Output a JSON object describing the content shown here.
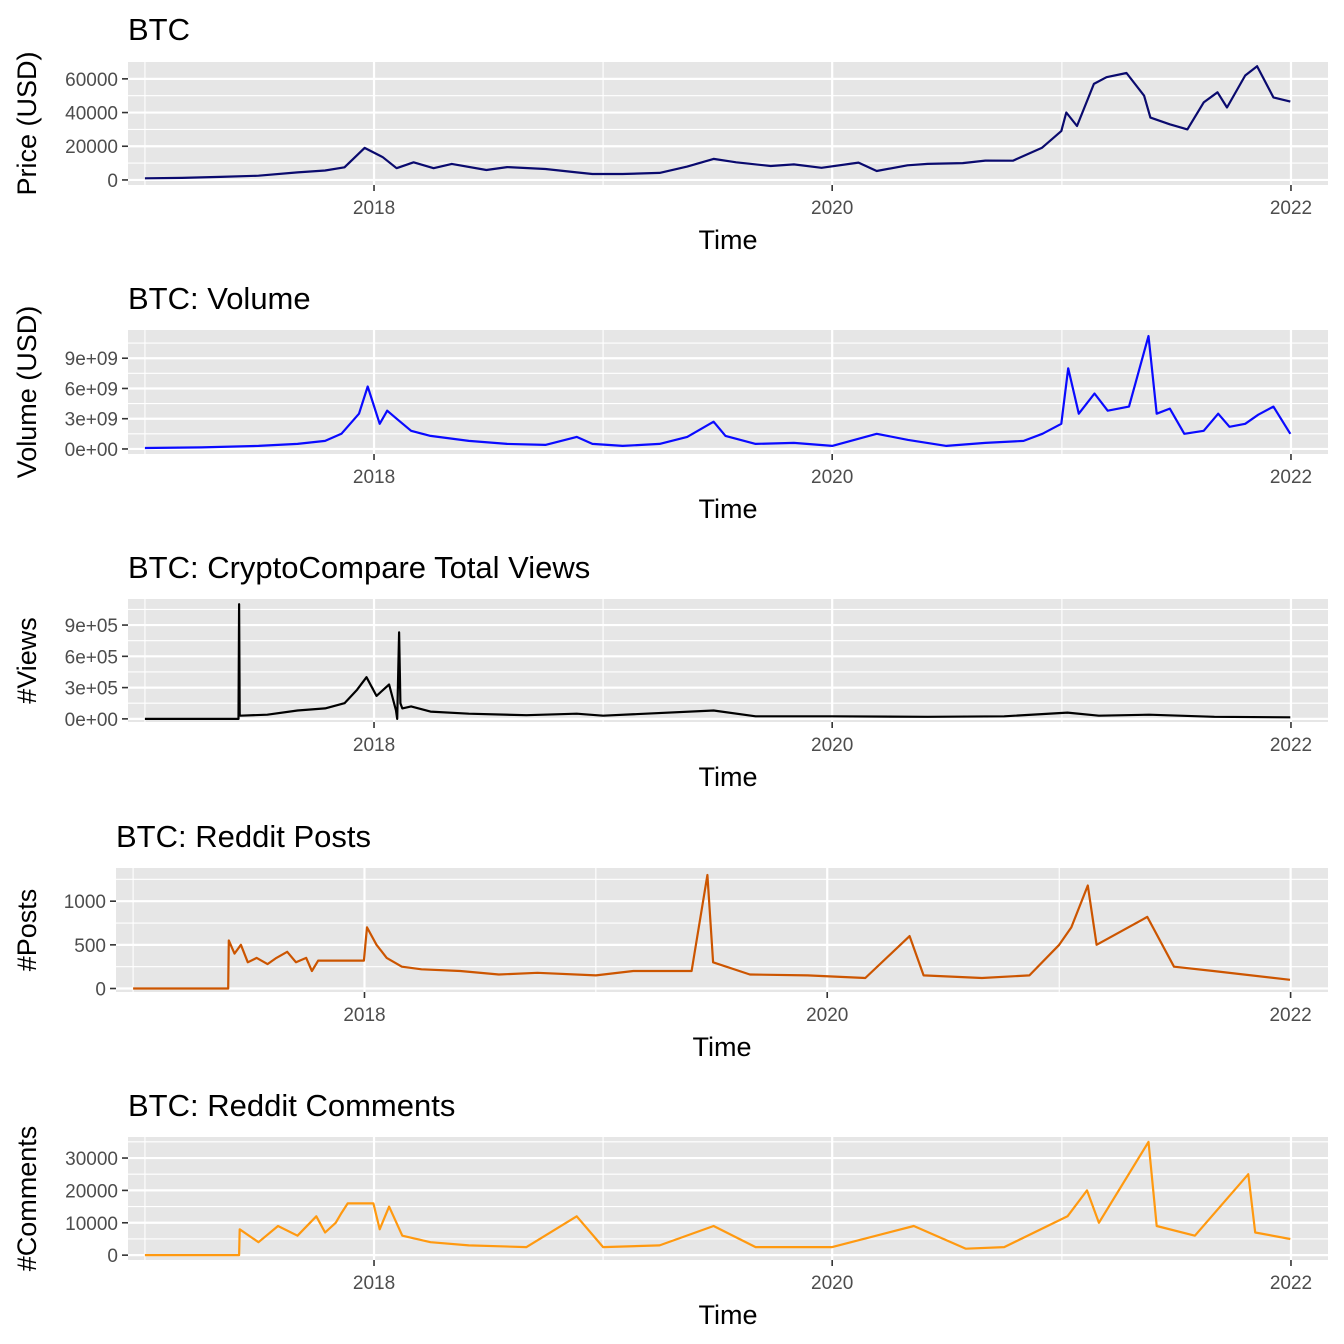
{
  "chart_data": [
    {
      "type": "line",
      "title": "BTC",
      "xlabel": "Time",
      "ylabel": "Price (USD)",
      "color": "#0a0a6e",
      "x_ticks": [
        "2018",
        "2020",
        "2022"
      ],
      "y_ticks": [
        "0",
        "20000",
        "40000",
        "60000"
      ],
      "y_tick_values": [
        0,
        20000,
        40000,
        60000
      ],
      "xlim": [
        "2016-12-05",
        "2022-03-01"
      ],
      "ylim": [
        -3000,
        70000
      ],
      "series": [
        {
          "x": [
            "2017-01-01",
            "2017-03-01",
            "2017-05-01",
            "2017-07-01",
            "2017-09-01",
            "2017-10-15",
            "2017-11-15",
            "2017-12-17",
            "2018-01-15",
            "2018-02-06",
            "2018-03-05",
            "2018-04-06",
            "2018-05-05",
            "2018-06-29",
            "2018-08-01",
            "2018-10-01",
            "2018-11-20",
            "2018-12-15",
            "2019-02-01",
            "2019-04-01",
            "2019-05-15",
            "2019-06-26",
            "2019-08-01",
            "2019-09-25",
            "2019-11-01",
            "2019-12-15",
            "2020-02-12",
            "2020-03-12",
            "2020-04-30",
            "2020-06-01",
            "2020-07-27",
            "2020-09-01",
            "2020-10-15",
            "2020-11-30",
            "2020-12-31",
            "2021-01-08",
            "2021-01-25",
            "2021-02-21",
            "2021-03-13",
            "2021-04-14",
            "2021-05-12",
            "2021-05-22",
            "2021-06-22",
            "2021-07-20",
            "2021-08-15",
            "2021-09-06",
            "2021-09-21",
            "2021-10-20",
            "2021-11-08",
            "2021-12-04",
            "2021-12-31"
          ],
          "y": [
            1000,
            1200,
            1800,
            2500,
            4500,
            5600,
            7500,
            19000,
            13500,
            7000,
            10500,
            7000,
            9500,
            5900,
            7600,
            6500,
            4500,
            3500,
            3500,
            4200,
            7900,
            12500,
            10500,
            8300,
            9200,
            7200,
            10300,
            5300,
            8700,
            9500,
            10000,
            11500,
            11400,
            19000,
            29000,
            40000,
            32000,
            57000,
            61000,
            63500,
            50000,
            37000,
            33000,
            30000,
            46000,
            52000,
            43000,
            62000,
            67500,
            49000,
            46500
          ]
        }
      ]
    },
    {
      "type": "line",
      "title": "BTC: Volume",
      "xlabel": "Time",
      "ylabel": "Volume (USD)",
      "color": "#0a0aff",
      "x_ticks": [
        "2018",
        "2020",
        "2022"
      ],
      "y_ticks": [
        "0e+00",
        "3e+09",
        "6e+09",
        "9e+09"
      ],
      "y_tick_values": [
        0,
        3000000000,
        6000000000,
        9000000000
      ],
      "xlim": [
        "2016-12-05",
        "2022-03-01"
      ],
      "ylim": [
        -500000000,
        11800000000
      ],
      "series": [
        {
          "x": [
            "2017-01-01",
            "2017-04-01",
            "2017-07-01",
            "2017-09-01",
            "2017-10-15",
            "2017-11-10",
            "2017-12-08",
            "2017-12-22",
            "2018-01-10",
            "2018-01-22",
            "2018-02-06",
            "2018-03-01",
            "2018-04-01",
            "2018-06-01",
            "2018-08-01",
            "2018-10-01",
            "2018-11-20",
            "2018-12-15",
            "2019-02-01",
            "2019-04-01",
            "2019-05-15",
            "2019-06-26",
            "2019-07-15",
            "2019-09-01",
            "2019-11-01",
            "2020-01-01",
            "2020-03-12",
            "2020-05-01",
            "2020-07-01",
            "2020-09-01",
            "2020-11-01",
            "2020-12-01",
            "2020-12-31",
            "2021-01-11",
            "2021-01-28",
            "2021-02-22",
            "2021-03-15",
            "2021-04-18",
            "2021-05-19",
            "2021-06-01",
            "2021-06-22",
            "2021-07-15",
            "2021-08-15",
            "2021-09-07",
            "2021-09-25",
            "2021-10-20",
            "2021-11-10",
            "2021-12-04",
            "2021-12-31"
          ],
          "y": [
            100000000,
            150000000,
            300000000,
            500000000,
            800000000,
            1500000000,
            3500000000,
            6200000000,
            2500000000,
            3800000000,
            3000000000,
            1800000000,
            1300000000,
            800000000,
            500000000,
            400000000,
            1200000000,
            500000000,
            300000000,
            500000000,
            1200000000,
            2700000000,
            1300000000,
            500000000,
            600000000,
            300000000,
            1500000000,
            900000000,
            300000000,
            600000000,
            800000000,
            1500000000,
            2500000000,
            8000000000,
            3500000000,
            5500000000,
            3800000000,
            4200000000,
            11200000000,
            3500000000,
            4000000000,
            1500000000,
            1800000000,
            3500000000,
            2200000000,
            2500000000,
            3400000000,
            4200000000,
            1500000000
          ]
        }
      ]
    },
    {
      "type": "line",
      "title": "BTC: CryptoCompare Total Views",
      "xlabel": "Time",
      "ylabel": "#Views",
      "color": "#000000",
      "x_ticks": [
        "2018",
        "2020",
        "2022"
      ],
      "y_ticks": [
        "0e+00",
        "3e+05",
        "6e+05",
        "9e+05"
      ],
      "y_tick_values": [
        0,
        300000,
        600000,
        900000
      ],
      "xlim": [
        "2016-12-05",
        "2022-03-01"
      ],
      "ylim": [
        -30000,
        1150000
      ],
      "series": [
        {
          "x": [
            "2017-01-01",
            "2017-05-30",
            "2017-05-31",
            "2017-06-01",
            "2017-06-02",
            "2017-07-15",
            "2017-09-01",
            "2017-10-15",
            "2017-11-15",
            "2017-12-05",
            "2017-12-20",
            "2018-01-05",
            "2018-01-25",
            "2018-02-05",
            "2018-02-07",
            "2018-02-10",
            "2018-02-12",
            "2018-02-15",
            "2018-03-01",
            "2018-04-01",
            "2018-06-01",
            "2018-09-01",
            "2018-11-20",
            "2019-01-01",
            "2019-06-26",
            "2019-09-01",
            "2020-01-01",
            "2020-06-01",
            "2020-10-01",
            "2021-01-10",
            "2021-03-01",
            "2021-05-20",
            "2021-09-01",
            "2021-12-31"
          ],
          "y": [
            0,
            0,
            1100000,
            40000,
            30000,
            40000,
            80000,
            100000,
            150000,
            280000,
            400000,
            220000,
            330000,
            80000,
            0,
            830000,
            150000,
            100000,
            120000,
            70000,
            50000,
            35000,
            50000,
            30000,
            80000,
            25000,
            25000,
            20000,
            25000,
            60000,
            30000,
            40000,
            20000,
            15000
          ]
        }
      ]
    },
    {
      "type": "line",
      "title": "BTC: Reddit Posts",
      "xlabel": "Time",
      "ylabel": "#Posts",
      "color": "#cc5500",
      "x_ticks": [
        "2018",
        "2020",
        "2022"
      ],
      "y_ticks": [
        "0",
        "500",
        "1000"
      ],
      "y_tick_values": [
        0,
        500,
        1000
      ],
      "xlim": [
        "2016-12-05",
        "2022-03-01"
      ],
      "ylim": [
        -40,
        1380
      ],
      "series": [
        {
          "x": [
            "2017-01-01",
            "2017-05-31",
            "2017-06-01",
            "2017-06-10",
            "2017-06-20",
            "2017-07-01",
            "2017-07-15",
            "2017-08-01",
            "2017-08-15",
            "2017-09-01",
            "2017-09-15",
            "2017-10-01",
            "2017-10-10",
            "2017-10-20",
            "2017-11-01",
            "2017-12-31",
            "2018-01-05",
            "2018-01-20",
            "2018-02-05",
            "2018-03-01",
            "2018-04-01",
            "2018-06-01",
            "2018-08-01",
            "2018-10-01",
            "2019-01-01",
            "2019-03-01",
            "2019-06-01",
            "2019-06-26",
            "2019-07-05",
            "2019-09-01",
            "2019-12-01",
            "2020-03-01",
            "2020-05-10",
            "2020-06-01",
            "2020-09-01",
            "2020-11-15",
            "2021-01-01",
            "2021-01-20",
            "2021-02-15",
            "2021-03-01",
            "2021-05-20",
            "2021-07-01",
            "2021-09-01",
            "2021-12-31"
          ],
          "y": [
            0,
            0,
            550,
            400,
            500,
            300,
            350,
            280,
            350,
            420,
            300,
            350,
            200,
            320,
            320,
            320,
            700,
            500,
            350,
            250,
            220,
            200,
            160,
            180,
            150,
            200,
            200,
            1300,
            300,
            160,
            150,
            120,
            600,
            150,
            120,
            150,
            500,
            700,
            1180,
            500,
            820,
            250,
            200,
            100
          ]
        }
      ]
    },
    {
      "type": "line",
      "title": "BTC: Reddit Comments",
      "xlabel": "Time",
      "ylabel": "#Comments",
      "color": "#ff9910",
      "x_ticks": [
        "2018",
        "2020",
        "2022"
      ],
      "y_ticks": [
        "0",
        "10000",
        "20000",
        "30000"
      ],
      "y_tick_values": [
        0,
        10000,
        20000,
        30000
      ],
      "xlim": [
        "2016-12-05",
        "2022-03-01"
      ],
      "ylim": [
        -1500,
        36500
      ],
      "series": [
        {
          "x": [
            "2017-01-01",
            "2017-05-31",
            "2017-06-01",
            "2017-07-01",
            "2017-08-01",
            "2017-09-01",
            "2017-10-01",
            "2017-10-15",
            "2017-11-01",
            "2017-11-10",
            "2017-11-20",
            "2017-12-31",
            "2018-01-10",
            "2018-01-25",
            "2018-02-15",
            "2018-04-01",
            "2018-06-01",
            "2018-09-01",
            "2018-11-20",
            "2019-01-01",
            "2019-04-01",
            "2019-06-26",
            "2019-09-01",
            "2020-01-01",
            "2020-05-10",
            "2020-08-01",
            "2020-10-01",
            "2021-01-10",
            "2021-02-10",
            "2021-03-01",
            "2021-05-19",
            "2021-06-01",
            "2021-08-01",
            "2021-10-25",
            "2021-11-05",
            "2021-12-31"
          ],
          "y": [
            0,
            0,
            8000,
            4000,
            9000,
            6000,
            12000,
            7000,
            10000,
            13000,
            16000,
            16000,
            8000,
            15000,
            6000,
            4000,
            3000,
            2500,
            12000,
            2500,
            3000,
            9000,
            2500,
            2500,
            9000,
            2000,
            2500,
            12000,
            20000,
            10000,
            35000,
            9000,
            6000,
            25000,
            7000,
            5000
          ]
        }
      ]
    }
  ]
}
